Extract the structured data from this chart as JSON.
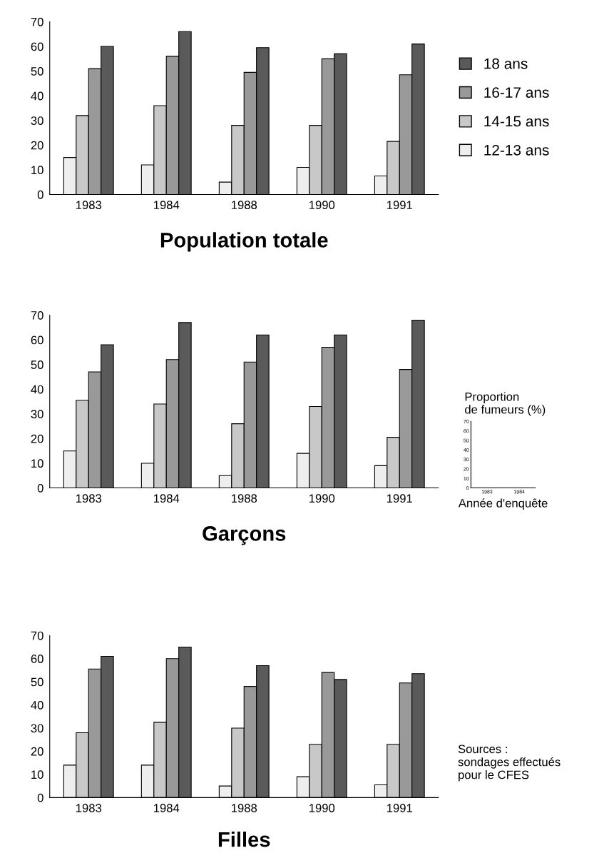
{
  "chart_data": [
    {
      "type": "bar",
      "title": "Population totale",
      "categories": [
        "1983",
        "1984",
        "1988",
        "1990",
        "1991"
      ],
      "ylim": [
        0,
        70
      ],
      "yticks": [
        0,
        10,
        20,
        30,
        40,
        50,
        60,
        70
      ],
      "legend": "right",
      "series": [
        {
          "name": "12-13 ans",
          "color": "#eeeeee",
          "values": [
            15,
            12,
            5,
            11,
            7.5
          ]
        },
        {
          "name": "14-15 ans",
          "color": "#c8c8c8",
          "values": [
            32,
            36,
            28,
            28,
            21.5
          ]
        },
        {
          "name": "16-17 ans",
          "color": "#999999",
          "values": [
            51,
            56,
            49.5,
            55,
            48.5
          ]
        },
        {
          "name": "18 ans",
          "color": "#5a5a5a",
          "values": [
            60,
            66,
            59.5,
            57,
            61
          ]
        }
      ]
    },
    {
      "type": "bar",
      "title": "Garçons",
      "categories": [
        "1983",
        "1984",
        "1988",
        "1990",
        "1991"
      ],
      "ylim": [
        0,
        70
      ],
      "yticks": [
        0,
        10,
        20,
        30,
        40,
        50,
        60,
        70
      ],
      "series": [
        {
          "color": "#eeeeee",
          "values": [
            15,
            10,
            5,
            14,
            9
          ]
        },
        {
          "color": "#c8c8c8",
          "values": [
            35.5,
            34,
            26,
            33,
            20.5
          ]
        },
        {
          "color": "#999999",
          "values": [
            47,
            52,
            51,
            57,
            48
          ]
        },
        {
          "color": "#5a5a5a",
          "values": [
            58,
            67,
            62,
            62,
            68
          ]
        }
      ]
    },
    {
      "type": "bar",
      "title": "Filles",
      "categories": [
        "1983",
        "1984",
        "1988",
        "1990",
        "1991"
      ],
      "ylim": [
        0,
        70
      ],
      "yticks": [
        0,
        10,
        20,
        30,
        40,
        50,
        60,
        70
      ],
      "annotations": [
        "Sources :\nsondages effectués\npour le CFES"
      ],
      "series": [
        {
          "color": "#eeeeee",
          "values": [
            14,
            14,
            5,
            9,
            5.5
          ]
        },
        {
          "color": "#c8c8c8",
          "values": [
            28,
            32.5,
            30,
            23,
            23
          ]
        },
        {
          "color": "#999999",
          "values": [
            55.5,
            60,
            48,
            54,
            49.5
          ]
        },
        {
          "color": "#5a5a5a",
          "values": [
            61,
            65,
            57,
            51,
            53.5
          ]
        }
      ]
    },
    {
      "type": "bar",
      "ylabel": "Proportion\nde fumeurs (%)",
      "xlabel": "Année d'enquête",
      "categories": [
        "1983",
        "1984"
      ],
      "ylim": [
        0,
        70
      ],
      "yticks": [
        0,
        10,
        20,
        30,
        40,
        50,
        60,
        70
      ],
      "values": [
        null,
        null
      ]
    }
  ]
}
